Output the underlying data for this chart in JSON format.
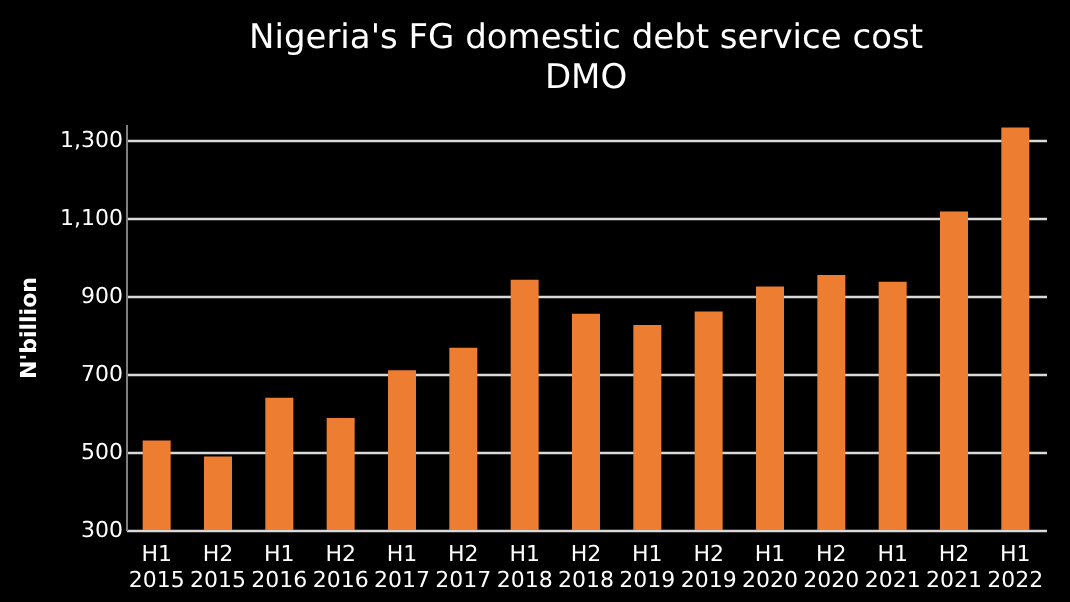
{
  "chart_data": {
    "type": "bar",
    "title": "Nigeria's FG domestic debt service cost",
    "subtitle": "DMO",
    "ylabel": "N'billion",
    "categories": [
      "H1 2015",
      "H2 2015",
      "H1 2016",
      "H2 2016",
      "H1 2017",
      "H2 2017",
      "H1 2018",
      "H2 2018",
      "H1 2019",
      "H2 2019",
      "H1 2020",
      "H2 2020",
      "H1 2021",
      "H2 2021",
      "H1 2022"
    ],
    "values": [
      529,
      488,
      639,
      587,
      709,
      767,
      941,
      854,
      825,
      860,
      924,
      953,
      936,
      1116,
      1331
    ],
    "color": "#ed7d31",
    "ylim": [
      300,
      1340
    ],
    "yticks": [
      {
        "value": 300,
        "label": "300"
      },
      {
        "value": 500,
        "label": "500"
      },
      {
        "value": 700,
        "label": "700"
      },
      {
        "value": 900,
        "label": "900"
      },
      {
        "value": 1100,
        "label": "1,100"
      },
      {
        "value": 1300,
        "label": "1,300"
      }
    ],
    "grid": "y"
  }
}
